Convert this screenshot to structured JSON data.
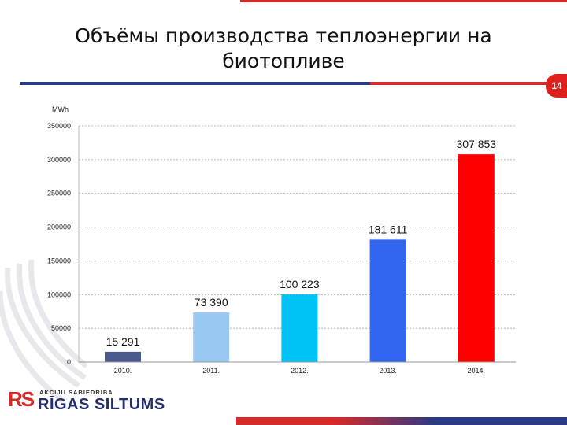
{
  "slide": {
    "title_line1": "Объёмы производства теплоэнергии на",
    "title_line2": "биотопливе",
    "page_number": "14"
  },
  "logo": {
    "mark": "RS",
    "tagline": "AKCIJU SABIEDRĪBA",
    "name": "RĪGAS SILTUMS"
  },
  "colors": {
    "brand_red": "#d42a2a",
    "brand_blue": "#2b3a84"
  },
  "chart_data": {
    "type": "bar",
    "ylabel": "MWh",
    "categories": [
      "2010.",
      "2011.",
      "2012.",
      "2013.",
      "2014."
    ],
    "values": [
      15291,
      73390,
      100223,
      181611,
      307853
    ],
    "value_labels": [
      "15 291",
      "73 390",
      "100 223",
      "181 611",
      "307 853"
    ],
    "bar_colors": [
      "#4a5a8c",
      "#99c8f2",
      "#00c3f5",
      "#3366f0",
      "#ff0000"
    ],
    "yticks": [
      "0",
      "50000",
      "100000",
      "150000",
      "200000",
      "250000",
      "300000",
      "350000"
    ],
    "ylim": [
      0,
      350000
    ],
    "grid": true
  }
}
